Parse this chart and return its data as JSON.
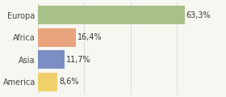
{
  "categories": [
    "Europa",
    "Africa",
    "Asia",
    "America"
  ],
  "values": [
    63.3,
    16.4,
    11.7,
    8.6
  ],
  "labels": [
    "63,3%",
    "16,4%",
    "11,7%",
    "8,6%"
  ],
  "bar_colors": [
    "#a8c08a",
    "#e8a47c",
    "#7b8fc4",
    "#f0d06a"
  ],
  "background_color": "#f7f7f2",
  "xlim": [
    0,
    80
  ],
  "bar_height": 0.82,
  "label_fontsize": 7.0,
  "tick_fontsize": 7.0
}
